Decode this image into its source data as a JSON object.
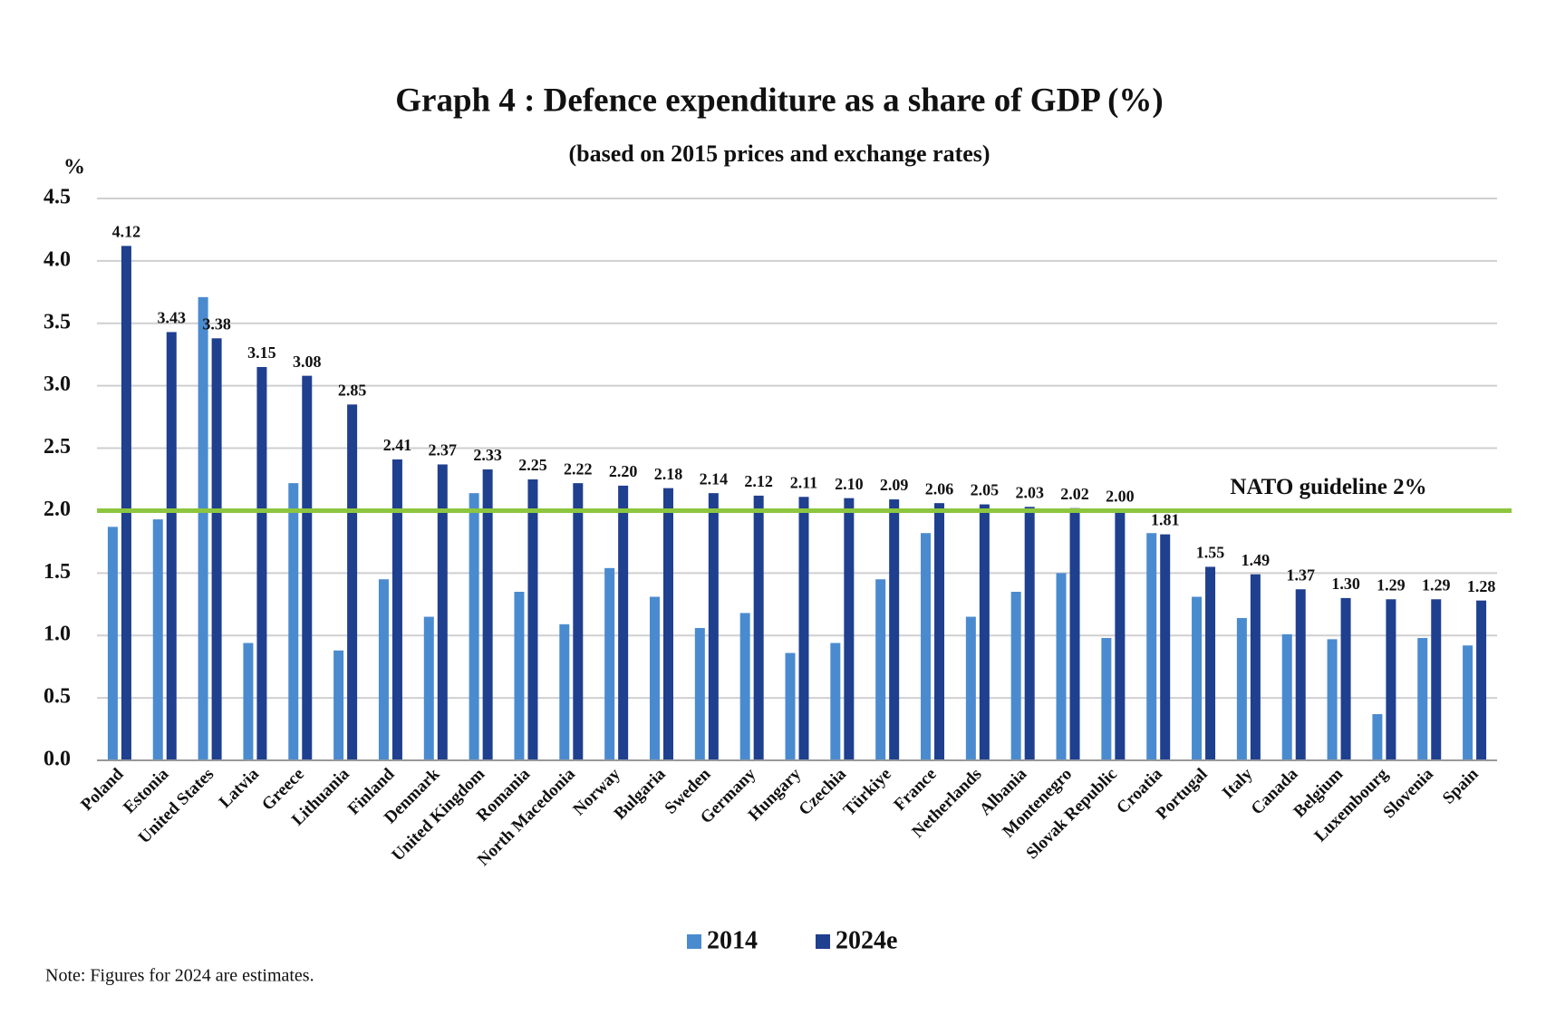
{
  "chart_data": {
    "type": "bar",
    "title": "Graph 4 : Defence expenditure as a share of GDP (%)",
    "subtitle": "(based on 2015 prices and exchange rates)",
    "y_label": "%",
    "note": "Note: Figures for 2024 are estimates.",
    "categories": [
      "Poland",
      "Estonia",
      "United States",
      "Latvia",
      "Greece",
      "Lithuania",
      "Finland",
      "Denmark",
      "United Kingdom",
      "Romania",
      "North Macedonia",
      "Norway",
      "Bulgaria",
      "Sweden",
      "Germany",
      "Hungary",
      "Czechia",
      "Türkiye",
      "France",
      "Netherlands",
      "Albania",
      "Montenegro",
      "Slovak Republic",
      "Croatia",
      "Portugal",
      "Italy",
      "Canada",
      "Belgium",
      "Luxembourg",
      "Slovenia",
      "Spain"
    ],
    "series": [
      {
        "name": "2014",
        "color": "#4a8bd0",
        "values": [
          1.87,
          1.93,
          3.71,
          0.94,
          2.22,
          0.88,
          1.45,
          1.15,
          2.14,
          1.35,
          1.09,
          1.54,
          1.31,
          1.06,
          1.18,
          0.86,
          0.94,
          1.45,
          1.82,
          1.15,
          1.35,
          1.5,
          0.98,
          1.82,
          1.31,
          1.14,
          1.01,
          0.97,
          0.37,
          0.98,
          0.92
        ]
      },
      {
        "name": "2024e",
        "color": "#1f3f8f",
        "values": [
          4.12,
          3.43,
          3.38,
          3.15,
          3.08,
          2.85,
          2.41,
          2.37,
          2.33,
          2.25,
          2.22,
          2.2,
          2.18,
          2.14,
          2.12,
          2.11,
          2.1,
          2.09,
          2.06,
          2.05,
          2.03,
          2.02,
          2,
          1.81,
          1.55,
          1.49,
          1.37,
          1.3,
          1.29,
          1.29,
          1.28
        ],
        "value_labels": [
          "4.12",
          "3.43",
          "3.38",
          "3.15",
          "3.08",
          "2.85",
          "2.41",
          "2.37",
          "2.33",
          "2.25",
          "2.22",
          "2.20",
          "2.18",
          "2.14",
          "2.12",
          "2.11",
          "2.10",
          "2.09",
          "2.06",
          "2.05",
          "2.03",
          "2.02",
          "2.00",
          "1.81",
          "1.55",
          "1.49",
          "1.37",
          "1.30",
          "1.29",
          "1.29",
          "1.28"
        ]
      }
    ],
    "ylim": [
      0,
      4.5
    ],
    "yticks": [
      {
        "value": 0,
        "label": "0.0"
      },
      0.5,
      {
        "value": 1,
        "label": "1.0"
      },
      1.5,
      {
        "value": 2,
        "label": "2.0"
      },
      2.5,
      {
        "value": 3,
        "label": "3.0"
      },
      3.5,
      {
        "value": 4,
        "label": "4.0"
      },
      4.5
    ],
    "grid": true,
    "reference_line": {
      "value": 2,
      "label": "NATO guideline 2%",
      "color": "#8cc63f"
    }
  }
}
